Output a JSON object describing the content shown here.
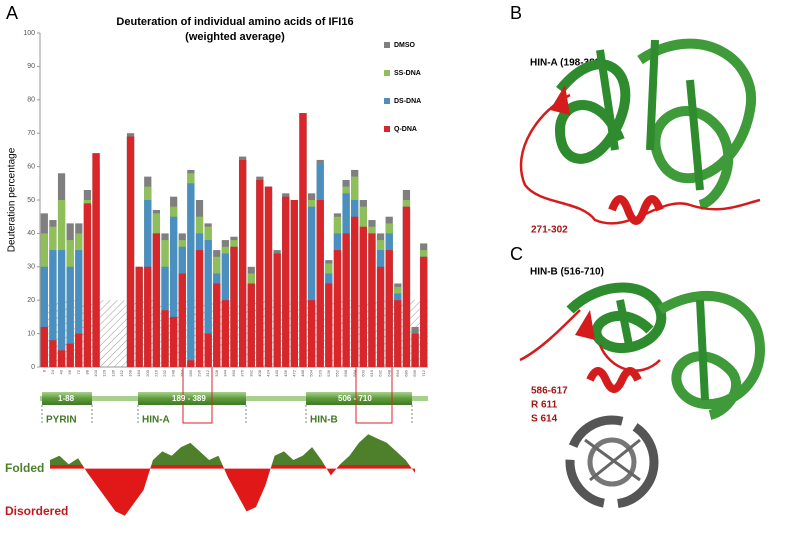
{
  "panel_label": "A",
  "chart_data": [
    {
      "type": "bar",
      "title": [
        "Deuteration of individual amino acids of IFI16",
        "(weighted average)"
      ],
      "y_label": "Deuteration  percentage",
      "categories": [
        "8",
        "24",
        "40",
        "56",
        "72",
        "88",
        "104",
        "120",
        "136",
        "152",
        "168",
        "184",
        "200",
        "216",
        "232",
        "248",
        "264",
        "280",
        "296",
        "312",
        "328",
        "344",
        "360",
        "376",
        "392",
        "408",
        "424",
        "440",
        "456",
        "472",
        "488",
        "504",
        "520",
        "536",
        "552",
        "568",
        "584",
        "600",
        "616",
        "632",
        "648",
        "664",
        "680",
        "696",
        "712"
      ],
      "series": [
        {
          "name": "DMSO",
          "color": "#7f7f7f",
          "values": [
            46,
            44,
            58,
            43,
            43,
            53,
            64,
            null,
            null,
            null,
            70,
            30,
            57,
            47,
            40,
            51,
            40,
            59,
            50,
            43,
            35,
            38,
            39,
            63,
            30,
            57,
            54,
            35,
            52,
            50,
            76,
            52,
            62,
            32,
            46,
            56,
            59,
            50,
            44,
            40,
            45,
            25,
            53,
            12,
            37
          ]
        },
        {
          "name": "SS-DNA",
          "color": "#8fbf5a",
          "values": [
            40,
            42,
            50,
            38,
            40,
            50,
            64,
            null,
            null,
            null,
            69,
            28,
            54,
            46,
            38,
            48,
            38,
            58,
            45,
            42,
            33,
            36,
            38,
            62,
            28,
            56,
            54,
            34,
            51,
            50,
            76,
            50,
            61,
            31,
            45,
            54,
            57,
            48,
            42,
            38,
            43,
            24,
            50,
            10,
            35
          ]
        },
        {
          "name": "DS-DNA",
          "color": "#4a8fbf",
          "values": [
            30,
            35,
            35,
            30,
            35,
            48,
            60,
            null,
            null,
            null,
            69,
            25,
            50,
            40,
            30,
            45,
            36,
            55,
            40,
            38,
            28,
            34,
            36,
            62,
            25,
            56,
            54,
            34,
            51,
            50,
            76,
            48,
            61,
            28,
            40,
            52,
            50,
            40,
            38,
            35,
            40,
            22,
            48,
            10,
            33
          ]
        },
        {
          "name": "Q-DNA",
          "color": "#d9262b",
          "values": [
            12,
            8,
            5,
            7,
            10,
            49,
            64,
            null,
            null,
            null,
            69,
            30,
            30,
            40,
            17,
            15,
            28,
            2,
            35,
            10,
            25,
            20,
            36,
            62,
            25,
            56,
            54,
            34,
            51,
            50,
            76,
            20,
            50,
            25,
            35,
            40,
            45,
            42,
            40,
            30,
            35,
            20,
            48,
            10,
            33
          ]
        }
      ],
      "ylim": [
        0,
        100
      ],
      "yticks": [
        0,
        10,
        20,
        30,
        40,
        50,
        60,
        70,
        80,
        90,
        100
      ],
      "threshold": 20,
      "legend": "top-right"
    },
    {
      "type": "area",
      "labels": {
        "positive": "Folded",
        "negative": "Disordered"
      },
      "colors": {
        "positive": "#4e7f2a",
        "negative": "#e01818"
      },
      "values": [
        10,
        15,
        5,
        12,
        -5,
        -20,
        -35,
        -50,
        -55,
        -40,
        -25,
        10,
        20,
        15,
        25,
        30,
        20,
        10,
        15,
        -10,
        -30,
        -50,
        -45,
        -20,
        15,
        20,
        10,
        15,
        25,
        10,
        -8,
        5,
        15,
        30,
        40,
        35,
        30,
        20,
        10,
        -5
      ],
      "ylim": [
        -60,
        45
      ]
    }
  ],
  "domains": {
    "pyrin_range": "1-88",
    "pyrin": "PYRIN",
    "hina_range": "189 - 389",
    "hina": "HIN-A",
    "hinb_range": "506 - 710",
    "hinb": "HIN-B"
  },
  "panel_b": {
    "label": "B",
    "title": "HIN-A  (198-389)",
    "region": "271-302"
  },
  "panel_c": {
    "label": "C",
    "title": "HIN-B  (516-710)",
    "notes": [
      "586-617",
      "R 611",
      "S 614"
    ]
  }
}
